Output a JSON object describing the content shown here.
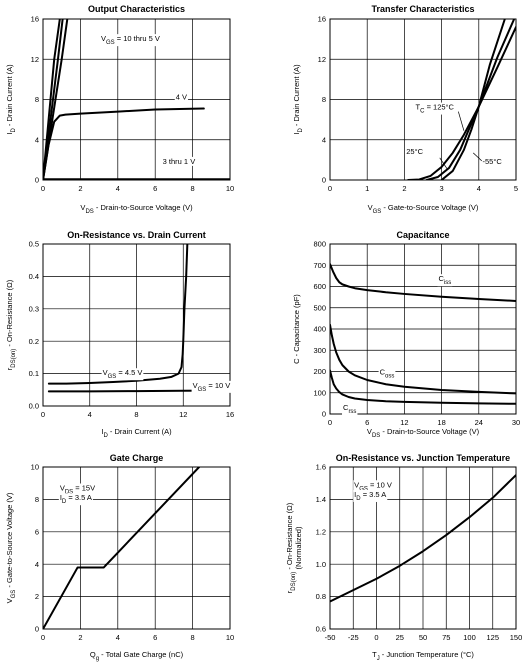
{
  "chart_data": [
    {
      "id": "output",
      "type": "line",
      "title": "Output Characteristics",
      "xlabel": "V_DS - Drain-to-Source Voltage (V)",
      "xlabel_parts": [
        {
          "t": "V"
        },
        {
          "t": "DS",
          "sub": true
        },
        {
          "t": "  -  Drain-to-Source Voltage (V)"
        }
      ],
      "ylabel": "I_D - Drain Current (A)",
      "ylabel_parts": [
        {
          "t": "I"
        },
        {
          "t": "D",
          "sub": true
        },
        {
          "t": "  -  Drain Current (A)"
        }
      ],
      "xlim": [
        0,
        10
      ],
      "ylim": [
        0,
        16
      ],
      "xticks": [
        0,
        2,
        4,
        6,
        8,
        10
      ],
      "yticks": [
        0,
        4,
        8,
        12,
        16
      ],
      "grid": true,
      "series": [
        {
          "name": "V_GS = 10 thru 5 V",
          "x": [
            0,
            0.3,
            0.6,
            0.9
          ],
          "y": [
            0,
            6,
            12,
            16
          ]
        },
        {
          "name": "V_GS = 10 thru 5 V",
          "x": [
            0,
            0.4,
            0.8,
            1.05
          ],
          "y": [
            0,
            6,
            12,
            16
          ]
        },
        {
          "name": "V_GS = 10 thru 5 V",
          "x": [
            0,
            0.5,
            1.0,
            1.3
          ],
          "y": [
            0,
            6,
            12,
            16
          ]
        },
        {
          "name": "4 V",
          "x": [
            0,
            0.3,
            0.6,
            0.9,
            1.2,
            2,
            4,
            6,
            8.6
          ],
          "y": [
            0,
            3.5,
            5.8,
            6.4,
            6.5,
            6.6,
            6.8,
            7.0,
            7.1
          ]
        },
        {
          "name": "3 thru 1 V",
          "x": [
            0,
            10
          ],
          "y": [
            0.08,
            0.08
          ]
        },
        {
          "name": "3 thru 1 V",
          "x": [
            0,
            10
          ],
          "y": [
            0.02,
            0.02
          ]
        }
      ],
      "annotations": [
        {
          "parts": [
            {
              "t": "V"
            },
            {
              "t": "GS",
              "sub": true
            },
            {
              "t": " = 10 thru 5 V"
            }
          ],
          "x": 3.1,
          "y": 13.8
        },
        {
          "parts": [
            {
              "t": "4 V"
            }
          ],
          "x": 7.1,
          "y": 8.0
        },
        {
          "parts": [
            {
              "t": "3 thru 1 V"
            }
          ],
          "x": 6.4,
          "y": 1.6
        }
      ]
    },
    {
      "id": "transfer",
      "type": "line",
      "title": "Transfer Characteristics",
      "xlabel": "V_GS - Gate-to-Source Voltage (V)",
      "xlabel_parts": [
        {
          "t": "V"
        },
        {
          "t": "GS",
          "sub": true
        },
        {
          "t": "  -  Gate-to-Source Voltage (V)"
        }
      ],
      "ylabel": "I_D - Drain Current (A)",
      "ylabel_parts": [
        {
          "t": "I"
        },
        {
          "t": "D",
          "sub": true
        },
        {
          "t": "  -  Drain Current (A)"
        }
      ],
      "xlim": [
        0,
        5
      ],
      "ylim": [
        0,
        16
      ],
      "xticks": [
        0,
        1,
        2,
        3,
        4,
        5
      ],
      "yticks": [
        0,
        4,
        8,
        12,
        16
      ],
      "grid": true,
      "series": [
        {
          "name": "T_C = 125°C",
          "x": [
            2.1,
            2.4,
            2.7,
            3.0,
            3.3,
            3.6,
            4.0,
            4.5,
            5.0
          ],
          "y": [
            0,
            0.05,
            0.4,
            1.3,
            2.7,
            4.5,
            7.3,
            11.2,
            15.2
          ]
        },
        {
          "name": "25°C",
          "x": [
            2.6,
            2.9,
            3.2,
            3.5,
            3.8,
            4.0,
            4.5,
            4.95
          ],
          "y": [
            0,
            0.3,
            1.2,
            3.0,
            5.6,
            7.3,
            12.2,
            16.0
          ]
        },
        {
          "name": "-55°C",
          "x": [
            3.0,
            3.3,
            3.6,
            3.8,
            4.0,
            4.3,
            4.7
          ],
          "y": [
            0,
            0.9,
            3.0,
            5.0,
            7.3,
            11.5,
            16.0
          ]
        }
      ],
      "annotations": [
        {
          "parts": [
            {
              "t": "T"
            },
            {
              "t": "C",
              "sub": true
            },
            {
              "t": " = 125°C"
            }
          ],
          "x": 2.3,
          "y": 7.0,
          "lead": [
            3.45,
            6.8,
            3.6,
            4.9
          ]
        },
        {
          "parts": [
            {
              "t": "25°C"
            }
          ],
          "x": 2.05,
          "y": 2.6,
          "lead": [
            2.95,
            2.2,
            3.15,
            1.1
          ]
        },
        {
          "parts": [
            {
              "t": "-55°C"
            }
          ],
          "x": 4.1,
          "y": 1.6,
          "lead": [
            4.08,
            1.9,
            3.85,
            2.7
          ]
        }
      ]
    },
    {
      "id": "onres",
      "type": "line",
      "title": "On-Resistance vs. Drain Current",
      "xlabel": "I_D - Drain Current (A)",
      "xlabel_parts": [
        {
          "t": "I"
        },
        {
          "t": "D",
          "sub": true
        },
        {
          "t": "  -  Drain Current (A)"
        }
      ],
      "ylabel": "r_DS(on) - On-Resistance (Ω)",
      "ylabel_parts": [
        {
          "t": "r"
        },
        {
          "t": "DS(on)",
          "sub": true
        },
        {
          "t": "  -  On-Resistance (Ω)"
        }
      ],
      "xlim": [
        0,
        16
      ],
      "ylim": [
        0,
        0.5
      ],
      "xticks": [
        0,
        4,
        8,
        12,
        16
      ],
      "yticks": [
        0,
        0.1,
        0.2,
        0.3,
        0.4,
        0.5
      ],
      "grid": true,
      "series": [
        {
          "name": "V_GS = 4.5 V",
          "x": [
            0.5,
            2,
            4,
            6,
            8,
            10,
            11,
            11.6,
            11.85,
            11.95,
            12.0,
            12.1,
            12.25,
            12.35
          ],
          "y": [
            0.069,
            0.069,
            0.071,
            0.074,
            0.078,
            0.084,
            0.09,
            0.1,
            0.12,
            0.16,
            0.2,
            0.3,
            0.4,
            0.5
          ]
        },
        {
          "name": "V_GS = 10 V",
          "x": [
            0.5,
            4,
            8,
            12,
            16
          ],
          "y": [
            0.045,
            0.045,
            0.046,
            0.047,
            0.048
          ]
        }
      ],
      "annotations": [
        {
          "parts": [
            {
              "t": "V"
            },
            {
              "t": "GS",
              "sub": true
            },
            {
              "t": " = 4.5 V"
            }
          ],
          "x": 5.1,
          "y": 0.095
        },
        {
          "parts": [
            {
              "t": "V"
            },
            {
              "t": "GS",
              "sub": true
            },
            {
              "t": " = 10 V"
            }
          ],
          "x": 12.8,
          "y": 0.056
        }
      ]
    },
    {
      "id": "cap",
      "type": "line",
      "title": "Capacitance",
      "xlabel": "V_DS - Drain-to-Source Voltage (V)",
      "xlabel_parts": [
        {
          "t": "V"
        },
        {
          "t": "DS",
          "sub": true
        },
        {
          "t": "  -  Drain-to-Source Voltage (V)"
        }
      ],
      "ylabel": "C - Capacitance (pF)",
      "ylabel_parts": [
        {
          "t": "C  -  Capacitance (pF)"
        }
      ],
      "xlim": [
        0,
        30
      ],
      "ylim": [
        0,
        800
      ],
      "xticks": [
        0,
        6,
        12,
        18,
        24,
        30
      ],
      "yticks": [
        0,
        100,
        200,
        300,
        400,
        500,
        600,
        700,
        800
      ],
      "grid": true,
      "series": [
        {
          "name": "C_iss",
          "x": [
            0,
            0.5,
            1,
            1.5,
            2,
            3,
            4,
            6,
            9,
            12,
            18,
            24,
            30
          ],
          "y": [
            705,
            670,
            640,
            620,
            610,
            600,
            592,
            583,
            573,
            565,
            552,
            541,
            532
          ]
        },
        {
          "name": "C_oss",
          "x": [
            0,
            0.3,
            0.6,
            1,
            1.5,
            2,
            3,
            4,
            6,
            9,
            12,
            18,
            24,
            30
          ],
          "y": [
            420,
            370,
            330,
            290,
            255,
            230,
            200,
            182,
            160,
            140,
            128,
            113,
            104,
            97
          ]
        },
        {
          "name": "C_rss",
          "x": [
            0,
            0.3,
            0.6,
            1,
            1.5,
            2,
            3,
            4,
            6,
            9,
            12,
            18,
            24,
            30
          ],
          "y": [
            205,
            170,
            140,
            120,
            103,
            92,
            80,
            73,
            66,
            60,
            57,
            53,
            50,
            48
          ]
        }
      ],
      "annotations": [
        {
          "parts": [
            {
              "t": "C"
            },
            {
              "t": "iss",
              "sub": true
            }
          ],
          "x": 17.5,
          "y": 625
        },
        {
          "parts": [
            {
              "t": "C"
            },
            {
              "t": "oss",
              "sub": true
            }
          ],
          "x": 8.0,
          "y": 185
        },
        {
          "parts": [
            {
              "t": "C"
            },
            {
              "t": "rss",
              "sub": true
            }
          ],
          "x": 2.1,
          "y": 20
        }
      ]
    },
    {
      "id": "gate",
      "type": "line",
      "title": "Gate Charge",
      "xlabel": "Q_g - Total Gate Charge (nC)",
      "xlabel_parts": [
        {
          "t": "Q"
        },
        {
          "t": "g",
          "sub": true
        },
        {
          "t": "  -  Total Gate Charge (nC)"
        }
      ],
      "ylabel": "V_GS - Gate-to-Source Voltage (V)",
      "ylabel_parts": [
        {
          "t": "V"
        },
        {
          "t": "GS",
          "sub": true
        },
        {
          "t": "  -  Gate-to-Source Voltage (V)"
        }
      ],
      "xlim": [
        0,
        10
      ],
      "ylim": [
        0,
        10
      ],
      "xticks": [
        0,
        2,
        4,
        6,
        8,
        10
      ],
      "yticks": [
        0,
        2,
        4,
        6,
        8,
        10
      ],
      "grid": true,
      "series": [
        {
          "name": "V_DS = 15V, I_D = 3.5 A",
          "x": [
            0,
            1.85,
            3.25,
            8.35
          ],
          "y": [
            0,
            3.8,
            3.8,
            10
          ]
        }
      ],
      "annotations": [
        {
          "parts": [
            {
              "t": "V"
            },
            {
              "t": "DS",
              "sub": true
            },
            {
              "t": " = 15V"
            }
          ],
          "x": 0.9,
          "y": 8.55
        },
        {
          "parts": [
            {
              "t": "I"
            },
            {
              "t": "D",
              "sub": true
            },
            {
              "t": " = 3.5  A"
            }
          ],
          "x": 0.9,
          "y": 7.95
        }
      ]
    },
    {
      "id": "onrestemp",
      "type": "line",
      "title": "On-Resistance vs. Junction Temperature",
      "xlabel": "T_J - Junction Temperature (°C)",
      "xlabel_parts": [
        {
          "t": "T"
        },
        {
          "t": "J",
          "sub": true
        },
        {
          "t": "  -  Junction Temperature (°C)"
        }
      ],
      "ylabel": "r_DS(on) - On-Resistance (Ω) (Normalized)",
      "ylabel_parts": [
        {
          "t": "r"
        },
        {
          "t": "DS(on)",
          "sub": true
        },
        {
          "t": "  -  On-Resistance (Ω)"
        }
      ],
      "ylabel_line2": "(Normalized)",
      "xlim": [
        -50,
        150
      ],
      "ylim": [
        0.6,
        1.6
      ],
      "xticks": [
        -50,
        -25,
        0,
        25,
        50,
        75,
        100,
        125,
        150
      ],
      "yticks": [
        0.6,
        0.8,
        1.0,
        1.2,
        1.4,
        1.6
      ],
      "grid": true,
      "series": [
        {
          "name": "V_GS = 10 V, I_D = 3.5 A",
          "x": [
            -50,
            -25,
            0,
            25,
            50,
            75,
            100,
            125,
            150
          ],
          "y": [
            0.77,
            0.84,
            0.91,
            0.99,
            1.08,
            1.18,
            1.29,
            1.41,
            1.55
          ]
        }
      ],
      "annotations": [
        {
          "parts": [
            {
              "t": "V"
            },
            {
              "t": "GS",
              "sub": true
            },
            {
              "t": " = 10 V"
            }
          ],
          "x": -24,
          "y": 1.475
        },
        {
          "parts": [
            {
              "t": "I"
            },
            {
              "t": "D",
              "sub": true
            },
            {
              "t": " = 3.5  A"
            }
          ],
          "x": -24,
          "y": 1.415
        }
      ]
    }
  ]
}
